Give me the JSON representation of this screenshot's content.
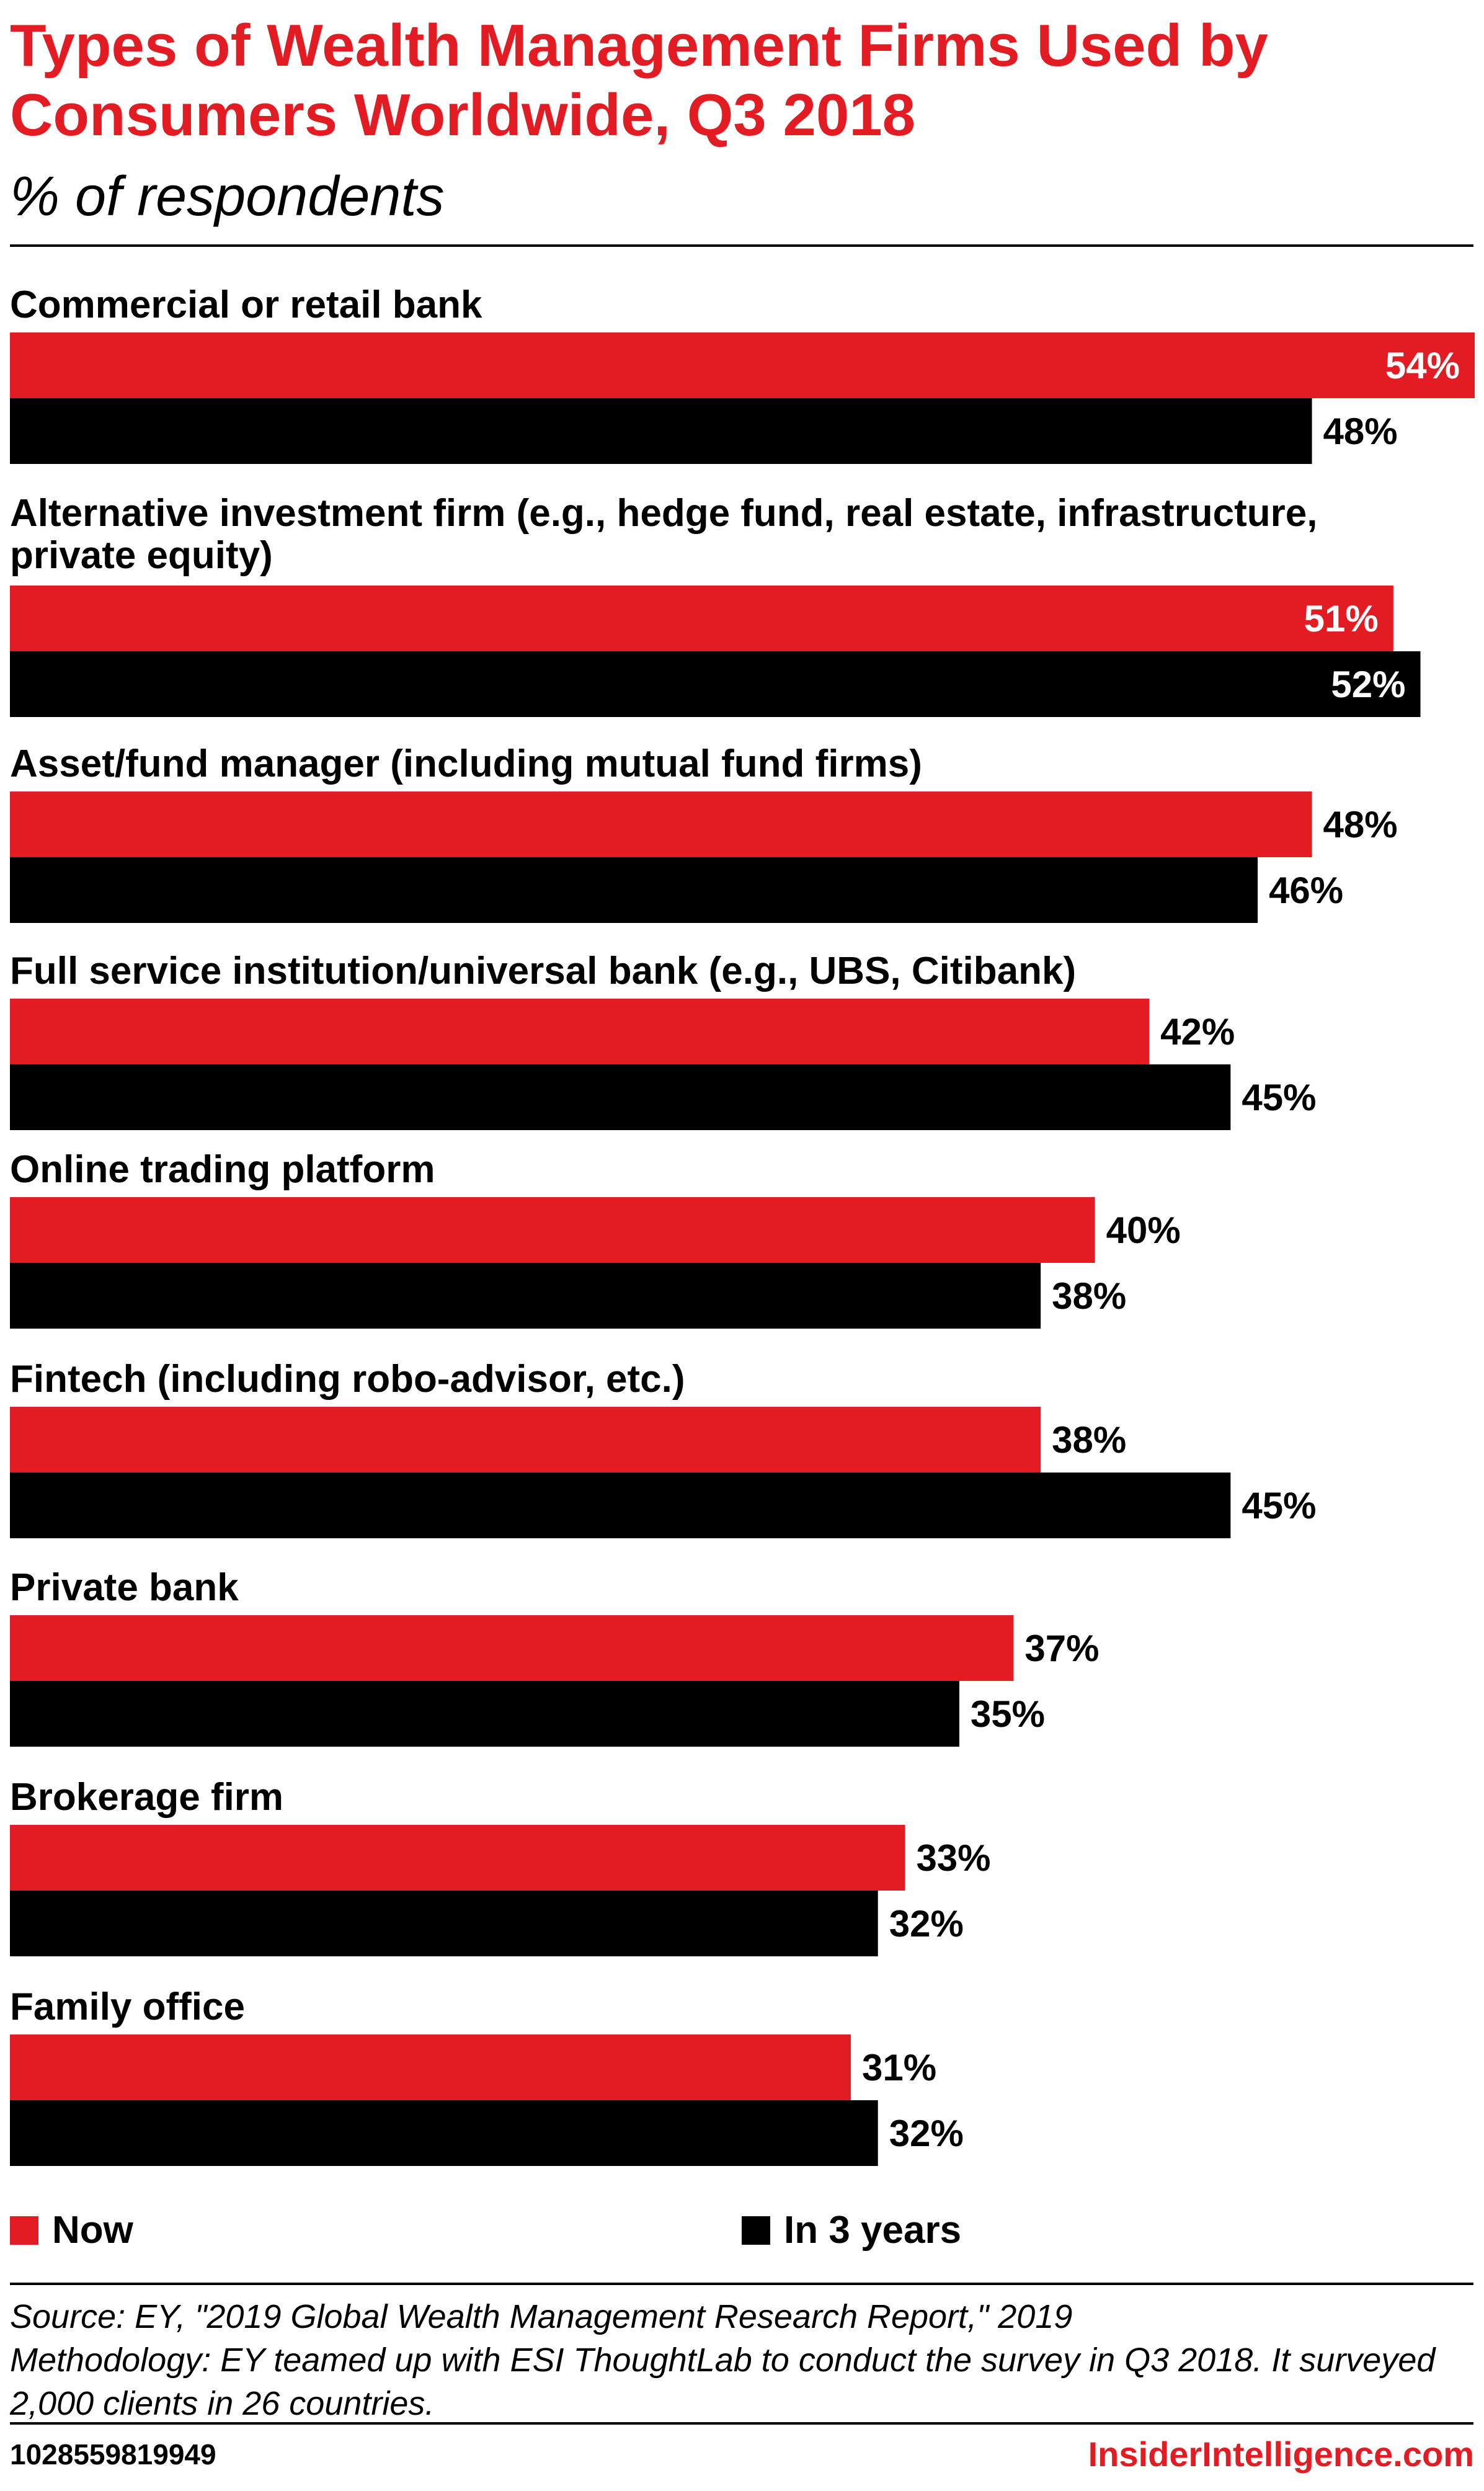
{
  "header": {
    "title": "Types of Wealth Management Firms Used by Consumers Worldwide, Q3 2018",
    "subtitle": "% of respondents"
  },
  "colors": {
    "now": "#e31b23",
    "in_3_years": "#000000",
    "accent": "#e31b23"
  },
  "chart_data": {
    "type": "bar",
    "orientation": "horizontal",
    "title": "Types of Wealth Management Firms Used by Consumers Worldwide, Q3 2018",
    "subtitle": "% of respondents",
    "categories": [
      "Commercial or retail bank",
      "Alternative investment firm (e.g., hedge fund, real estate, infrastructure, private equity)",
      "Asset/fund manager (including mutual fund firms)",
      "Full service institution/universal bank (e.g., UBS, Citibank)",
      "Online trading platform",
      "Fintech (including robo-advisor, etc.)",
      "Private bank",
      "Brokerage firm",
      "Family office"
    ],
    "series": [
      {
        "name": "Now",
        "color": "#e31b23",
        "values": [
          54,
          51,
          48,
          42,
          40,
          38,
          37,
          33,
          31
        ]
      },
      {
        "name": "In 3 years",
        "color": "#000000",
        "values": [
          48,
          52,
          46,
          45,
          38,
          45,
          35,
          32,
          32
        ]
      }
    ],
    "value_suffix": "%",
    "xlim": [
      0,
      54
    ],
    "grid": false,
    "legend_position": "bottom"
  },
  "legend": {
    "now_label": "Now",
    "in3_label": "In 3 years"
  },
  "footer": {
    "source": "Source: EY, \"2019 Global Wealth Management Research Report,\" 2019",
    "methodology": "Methodology: EY teamed up with ESI ThoughtLab to conduct the survey in Q3 2018. It surveyed 2,000 clients in 26 countries.",
    "chart_id": "1028559819949",
    "brand": "InsiderIntelligence.com"
  }
}
